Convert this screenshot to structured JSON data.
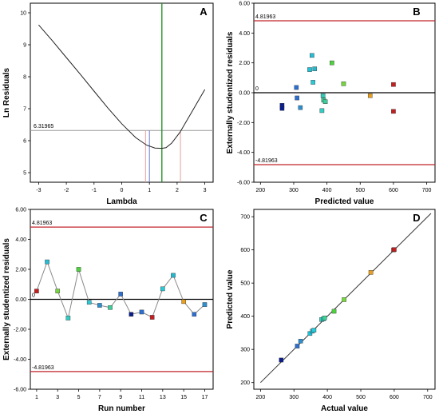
{
  "chart_data": [
    {
      "panel": "A",
      "type": "line",
      "xlabel": "Lambda",
      "ylabel": "Ln Residuals",
      "xlim": [
        -3.3,
        3.3
      ],
      "ylim": [
        4.7,
        10.3
      ],
      "xticks": [
        -3,
        -2,
        -1,
        0,
        1,
        2,
        3
      ],
      "yticks": [
        5,
        6,
        7,
        8,
        9,
        10
      ],
      "series": [
        {
          "x": [
            -3,
            -2.5,
            -2,
            -1.5,
            -1,
            -0.5,
            0,
            0.5,
            0.9,
            1.2,
            1.45,
            1.6,
            1.8,
            2.1,
            2.5,
            3
          ],
          "y": [
            9.62,
            9.12,
            8.6,
            8.08,
            7.55,
            7.02,
            6.53,
            6.1,
            5.86,
            5.77,
            5.76,
            5.78,
            5.92,
            6.26,
            6.85,
            7.6
          ]
        }
      ],
      "reference_lines": {
        "ci_threshold": 6.31965,
        "ci_threshold_label": "6.31965",
        "ci_low": 0.86,
        "ci_high": 2.12,
        "best": 1.45,
        "current": 1.0
      }
    },
    {
      "panel": "B",
      "type": "scatter",
      "xlabel": "Predicted value",
      "ylabel": "Externally studentized residuals",
      "xlim": [
        180,
        725
      ],
      "ylim": [
        -6.0,
        6.0
      ],
      "xticks": [
        200,
        300,
        400,
        500,
        600,
        700
      ],
      "yticks": [
        -6,
        -4,
        -2,
        0,
        2,
        4,
        6
      ],
      "ytick_labels": [
        "-6.00",
        "-4.00",
        "-2.00",
        "0.00",
        "2.00",
        "4.00",
        "6.00"
      ],
      "limit_upper": 4.81963,
      "limit_upper_label": "4.81963",
      "limit_lower": -4.81963,
      "limit_lower_label": "-4.81963",
      "zero_label": "0",
      "points": {
        "x": [
          265,
          265,
          308,
          310,
          320,
          348,
          355,
          358,
          363,
          385,
          388,
          390,
          395,
          415,
          450,
          530,
          600,
          600
        ],
        "y": [
          -0.85,
          -1.05,
          0.35,
          -0.35,
          -1.0,
          1.55,
          2.5,
          0.7,
          1.6,
          -1.2,
          -0.2,
          -0.5,
          -0.6,
          2.0,
          0.6,
          -0.2,
          0.55,
          -1.25
        ],
        "colors": [
          "#0a1d8c",
          "#0a1d8c",
          "#2c6fcf",
          "#2c6fcf",
          "#2c8fcf",
          "#21c1d6",
          "#27bcd4",
          "#29c9d8",
          "#22b8cd",
          "#32ccc0",
          "#2fcab8",
          "#3dd49a",
          "#3ccd9a",
          "#4ed23f",
          "#76d63e",
          "#e89e1e",
          "#c51e1e",
          "#c22020"
        ]
      }
    },
    {
      "panel": "C",
      "type": "line",
      "xlabel": "Run number",
      "ylabel": "Externally studentized residuals",
      "xlim": [
        0.4,
        17.8
      ],
      "ylim": [
        -6.0,
        6.0
      ],
      "xticks": [
        1,
        3,
        5,
        7,
        9,
        11,
        13,
        15,
        17
      ],
      "yticks": [
        -6,
        -4,
        -2,
        0,
        2,
        4,
        6
      ],
      "ytick_labels": [
        "-6.00",
        "-4.00",
        "-2.00",
        "0.00",
        "2.00",
        "4.00",
        "6.00"
      ],
      "limit_upper": 4.81963,
      "limit_upper_label": "4.81963",
      "limit_lower": -4.81963,
      "limit_lower_label": "-4.81963",
      "zero_label": "0",
      "points": {
        "x": [
          1,
          2,
          3,
          4,
          5,
          6,
          7,
          8,
          9,
          10,
          11,
          12,
          13,
          14,
          15,
          16,
          17
        ],
        "y": [
          0.55,
          2.5,
          0.55,
          -1.25,
          2.0,
          -0.2,
          -0.4,
          -0.55,
          0.35,
          -1.0,
          -0.85,
          -1.2,
          0.7,
          1.6,
          -0.15,
          -1.0,
          -0.35
        ],
        "colors": [
          "#c51e1e",
          "#27bcd4",
          "#76d63e",
          "#32ccc0",
          "#4ed23f",
          "#29c9d8",
          "#2c8fcf",
          "#3ccd9a",
          "#2c6fcf",
          "#0a1d8c",
          "#2c6fcf",
          "#c22020",
          "#29c9d8",
          "#22b8cd",
          "#e89e1e",
          "#2c6fcf",
          "#2c8fcf"
        ]
      }
    },
    {
      "panel": "D",
      "type": "scatter",
      "xlabel": "Actual value",
      "ylabel": "Predicted value",
      "xlim": [
        180,
        722
      ],
      "ylim": [
        180,
        722
      ],
      "xticks": [
        200,
        300,
        400,
        500,
        600,
        700
      ],
      "yticks": [
        200,
        300,
        400,
        500,
        600,
        700
      ],
      "diagonal": [
        200,
        710
      ],
      "points": {
        "x": [
          262,
          310,
          320,
          348,
          355,
          360,
          383,
          388,
          392,
          420,
          450,
          530,
          598,
          600
        ],
        "y": [
          268,
          310,
          325,
          348,
          355,
          358,
          390,
          392,
          395,
          415,
          450,
          532,
          600,
          601
        ],
        "colors": [
          "#0a1d8c",
          "#2c6fcf",
          "#2c8fcf",
          "#21c1d6",
          "#27bcd4",
          "#29c9d8",
          "#32ccc0",
          "#2fcab8",
          "#3dd49a",
          "#4ed23f",
          "#76d63e",
          "#e89e1e",
          "#c51e1e",
          "#c22020"
        ]
      }
    }
  ]
}
